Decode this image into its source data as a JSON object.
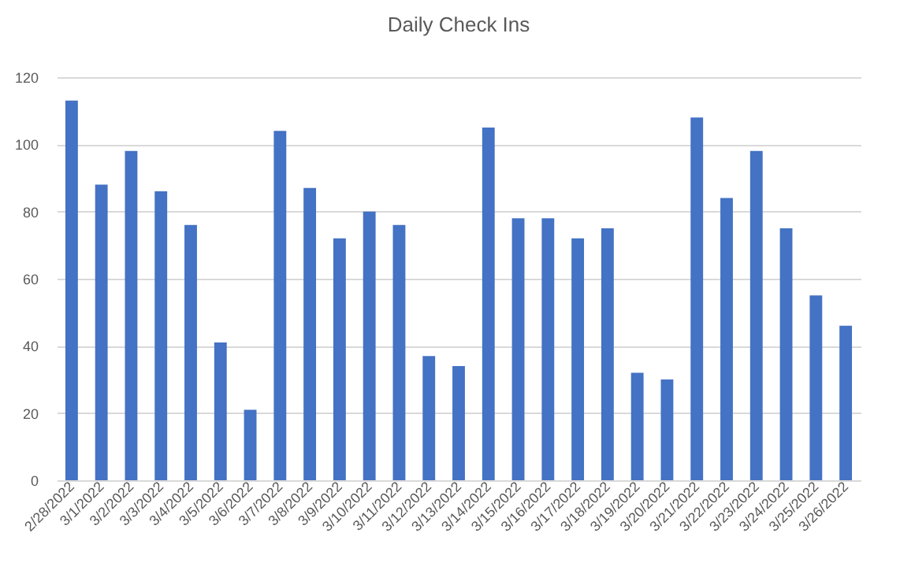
{
  "chart_data": {
    "type": "bar",
    "title": "Daily Check Ins",
    "categories": [
      "2/28/2022",
      "3/1/2022",
      "3/2/2022",
      "3/3/2022",
      "3/4/2022",
      "3/5/2022",
      "3/6/2022",
      "3/7/2022",
      "3/8/2022",
      "3/9/2022",
      "3/10/2022",
      "3/11/2022",
      "3/12/2022",
      "3/13/2022",
      "3/14/2022",
      "3/15/2022",
      "3/16/2022",
      "3/17/2022",
      "3/18/2022",
      "3/19/2022",
      "3/20/2022",
      "3/21/2022",
      "3/22/2022",
      "3/23/2022",
      "3/24/2022",
      "3/25/2022",
      "3/26/2022"
    ],
    "values": [
      113,
      88,
      98,
      86,
      76,
      41,
      21,
      104,
      87,
      72,
      80,
      76,
      37,
      34,
      105,
      78,
      78,
      72,
      75,
      32,
      30,
      108,
      84,
      98,
      75,
      55,
      46
    ],
    "color": "#4472c4",
    "ylim": [
      0,
      120
    ],
    "yticks": [
      0,
      20,
      40,
      60,
      80,
      100,
      120
    ],
    "grid": "y"
  }
}
